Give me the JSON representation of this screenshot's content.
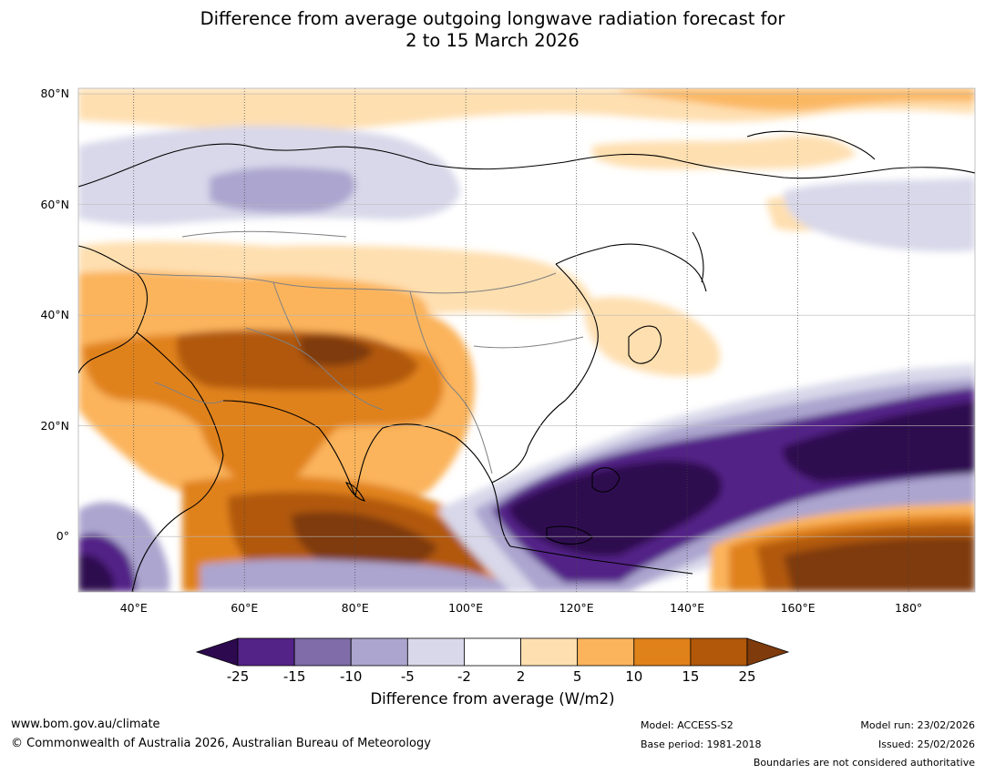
{
  "title": {
    "line1": "Difference from average outgoing longwave radiation forecast for",
    "line2": "2 to 15 March 2026"
  },
  "map": {
    "lon_range": [
      30,
      192
    ],
    "lat_range": [
      -10,
      81
    ],
    "lat_labels": [
      {
        "lat": 80,
        "text": "80°N"
      },
      {
        "lat": 60,
        "text": "60°N"
      },
      {
        "lat": 40,
        "text": "40°N"
      },
      {
        "lat": 20,
        "text": "20°N"
      },
      {
        "lat": 0,
        "text": "0°"
      }
    ],
    "lon_labels": [
      {
        "lon": 40,
        "text": "40°E"
      },
      {
        "lon": 60,
        "text": "60°E"
      },
      {
        "lon": 80,
        "text": "80°E"
      },
      {
        "lon": 100,
        "text": "100°E"
      },
      {
        "lon": 120,
        "text": "120°E"
      },
      {
        "lon": 140,
        "text": "140°E"
      },
      {
        "lon": 160,
        "text": "160°E"
      },
      {
        "lon": 180,
        "text": "180°"
      }
    ]
  },
  "colorbar": {
    "ticks": [
      "-25",
      "-15",
      "-10",
      "-5",
      "-2",
      "2",
      "5",
      "10",
      "15",
      "25"
    ],
    "colors": [
      "#2d0a4f",
      "#532387",
      "#7f6ca8",
      "#aca5cf",
      "#d8d8ea",
      "#ffffff",
      "#fedfb0",
      "#fbb45c",
      "#e0821a",
      "#b1580a",
      "#7f3b0b"
    ],
    "title": "Difference from average (W/m2)"
  },
  "footer": {
    "website": "www.bom.gov.au/climate",
    "copyright": "© Commonwealth of Australia 2026, Australian Bureau of Meteorology",
    "model": "Model: ACCESS-S2",
    "base_period": "Base period: 1981-2018",
    "model_run": "Model run: 23/02/2026",
    "issued": "Issued: 25/02/2026",
    "disclaimer": "Boundaries are not considered authoritative"
  }
}
